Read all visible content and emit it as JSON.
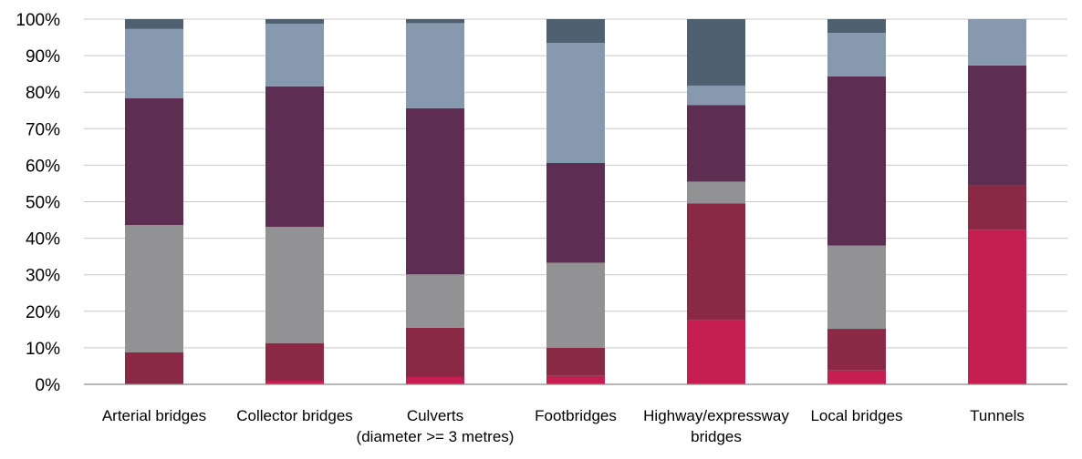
{
  "chart_data": {
    "type": "bar",
    "stacked": true,
    "percent": true,
    "categories": [
      [
        "Arterial bridges"
      ],
      [
        "Collector bridges"
      ],
      [
        "Culverts",
        "(diameter >= 3 metres)"
      ],
      [
        "Footbridges"
      ],
      [
        "Highway/expressway",
        "bridges"
      ],
      [
        "Local bridges"
      ],
      [
        "Tunnels"
      ]
    ],
    "series": [
      {
        "color": "#c41f50",
        "values": [
          0,
          1,
          2,
          2.3,
          17.5,
          3.8,
          42.3
        ]
      },
      {
        "color": "#8a2945",
        "values": [
          8.8,
          10.3,
          13.5,
          7.7,
          32,
          11.4,
          12.2
        ]
      },
      {
        "color": "#929295",
        "values": [
          34.8,
          31.8,
          14.6,
          23.3,
          6,
          22.8,
          0
        ]
      },
      {
        "color": "#5d2e52",
        "values": [
          34.7,
          38.5,
          45.5,
          27.3,
          21,
          46.3,
          32.8
        ]
      },
      {
        "color": "#8799af",
        "values": [
          19,
          17.1,
          23.3,
          32.9,
          5.3,
          11.9,
          12.7
        ]
      },
      {
        "color": "#4f6171",
        "values": [
          2.7,
          1.3,
          1.1,
          6.5,
          18.2,
          3.8,
          0
        ]
      }
    ],
    "ylim": [
      0,
      100
    ],
    "yticks": [
      "0%",
      "10%",
      "20%",
      "30%",
      "40%",
      "50%",
      "60%",
      "70%",
      "80%",
      "90%",
      "100%"
    ],
    "grid": true,
    "title": "",
    "xlabel": "",
    "ylabel": ""
  }
}
